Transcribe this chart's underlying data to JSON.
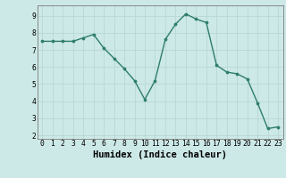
{
  "x": [
    0,
    1,
    2,
    3,
    4,
    5,
    6,
    7,
    8,
    9,
    10,
    11,
    12,
    13,
    14,
    15,
    16,
    17,
    18,
    19,
    20,
    21,
    22,
    23
  ],
  "y": [
    7.5,
    7.5,
    7.5,
    7.5,
    7.7,
    7.9,
    7.1,
    6.5,
    5.9,
    5.2,
    4.1,
    5.2,
    7.6,
    8.5,
    9.1,
    8.8,
    8.6,
    6.1,
    5.7,
    5.6,
    5.3,
    3.9,
    2.4,
    2.5
  ],
  "xlabel": "Humidex (Indice chaleur)",
  "ylim": [
    1.8,
    9.6
  ],
  "xlim": [
    -0.5,
    23.5
  ],
  "yticks": [
    2,
    3,
    4,
    5,
    6,
    7,
    8,
    9
  ],
  "xticks": [
    0,
    1,
    2,
    3,
    4,
    5,
    6,
    7,
    8,
    9,
    10,
    11,
    12,
    13,
    14,
    15,
    16,
    17,
    18,
    19,
    20,
    21,
    22,
    23
  ],
  "line_color": "#2e7d6e",
  "marker": "o",
  "marker_size": 2.2,
  "line_width": 1.0,
  "background_color": "#cce9e7",
  "grid_color": "#b8d8d5",
  "tick_label_fontsize": 5.8,
  "xlabel_fontsize": 7.5,
  "spine_color": "#888888"
}
